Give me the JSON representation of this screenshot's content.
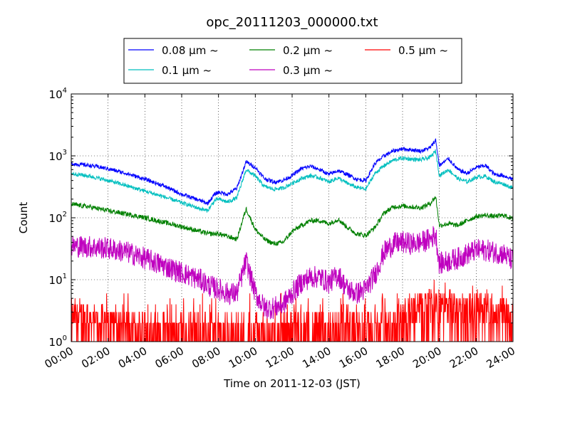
{
  "chart_data": {
    "type": "line",
    "title": "opc_20111203_000000.txt",
    "xlabel": "Time on 2011-12-03 (JST)",
    "ylabel": "Count",
    "x_range_hours": [
      0,
      24
    ],
    "ylim": [
      1,
      10000
    ],
    "yscale": "log",
    "grid": true,
    "legend_location": "top-center, above plot",
    "x_ticks": [
      "00:00",
      "02:00",
      "04:00",
      "06:00",
      "08:00",
      "10:00",
      "12:00",
      "14:00",
      "16:00",
      "18:00",
      "20:00",
      "22:00",
      "24:00"
    ],
    "y_ticks": [
      {
        "value": 1,
        "base": "10",
        "exp": "0"
      },
      {
        "value": 10,
        "base": "10",
        "exp": "1"
      },
      {
        "value": 100,
        "base": "10",
        "exp": "2"
      },
      {
        "value": 1000,
        "base": "10",
        "exp": "3"
      },
      {
        "value": 10000,
        "base": "10",
        "exp": "4"
      }
    ],
    "series": [
      {
        "name": "0.08 μm ~",
        "color": "#0000ff",
        "noise": 0.05,
        "values": [
          [
            0,
            750
          ],
          [
            1,
            700
          ],
          [
            2,
            620
          ],
          [
            3,
            520
          ],
          [
            4,
            420
          ],
          [
            5,
            330
          ],
          [
            6,
            240
          ],
          [
            7,
            190
          ],
          [
            7.4,
            170
          ],
          [
            7.8,
            240
          ],
          [
            8,
            260
          ],
          [
            8.5,
            240
          ],
          [
            9,
            300
          ],
          [
            9.5,
            800
          ],
          [
            10,
            650
          ],
          [
            10.5,
            430
          ],
          [
            11,
            380
          ],
          [
            11.5,
            400
          ],
          [
            12,
            480
          ],
          [
            12.5,
            620
          ],
          [
            13,
            680
          ],
          [
            13.5,
            600
          ],
          [
            14,
            500
          ],
          [
            14.5,
            580
          ],
          [
            15,
            500
          ],
          [
            15.5,
            420
          ],
          [
            16,
            400
          ],
          [
            16.5,
            750
          ],
          [
            17,
            1000
          ],
          [
            17.5,
            1200
          ],
          [
            18,
            1300
          ],
          [
            18.5,
            1250
          ],
          [
            19,
            1200
          ],
          [
            19.5,
            1350
          ],
          [
            19.8,
            1800
          ],
          [
            20,
            700
          ],
          [
            20.5,
            900
          ],
          [
            21,
            600
          ],
          [
            21.5,
            520
          ],
          [
            22,
            650
          ],
          [
            22.5,
            700
          ],
          [
            23,
            500
          ],
          [
            23.5,
            480
          ],
          [
            24,
            420
          ]
        ]
      },
      {
        "name": "0.1 μm ~",
        "color": "#00bfbf",
        "noise": 0.05,
        "values": [
          [
            0,
            520
          ],
          [
            1,
            470
          ],
          [
            2,
            400
          ],
          [
            3,
            330
          ],
          [
            4,
            270
          ],
          [
            5,
            220
          ],
          [
            6,
            175
          ],
          [
            7,
            140
          ],
          [
            7.4,
            130
          ],
          [
            7.8,
            190
          ],
          [
            8,
            200
          ],
          [
            8.5,
            180
          ],
          [
            9,
            210
          ],
          [
            9.5,
            600
          ],
          [
            10,
            470
          ],
          [
            10.5,
            320
          ],
          [
            11,
            290
          ],
          [
            11.5,
            300
          ],
          [
            12,
            360
          ],
          [
            12.5,
            430
          ],
          [
            13,
            480
          ],
          [
            13.5,
            440
          ],
          [
            14,
            380
          ],
          [
            14.5,
            440
          ],
          [
            15,
            360
          ],
          [
            15.5,
            310
          ],
          [
            16,
            290
          ],
          [
            16.5,
            520
          ],
          [
            17,
            700
          ],
          [
            17.5,
            850
          ],
          [
            18,
            920
          ],
          [
            18.5,
            880
          ],
          [
            19,
            860
          ],
          [
            19.5,
            950
          ],
          [
            19.8,
            1200
          ],
          [
            20,
            480
          ],
          [
            20.5,
            600
          ],
          [
            21,
            430
          ],
          [
            21.5,
            380
          ],
          [
            22,
            450
          ],
          [
            22.5,
            470
          ],
          [
            23,
            380
          ],
          [
            23.5,
            350
          ],
          [
            24,
            300
          ]
        ]
      },
      {
        "name": "0.2 μm ~",
        "color": "#008000",
        "noise": 0.06,
        "values": [
          [
            0,
            165
          ],
          [
            1,
            150
          ],
          [
            2,
            130
          ],
          [
            3,
            115
          ],
          [
            4,
            100
          ],
          [
            5,
            85
          ],
          [
            6,
            72
          ],
          [
            7,
            60
          ],
          [
            7.5,
            55
          ],
          [
            8,
            55
          ],
          [
            8.5,
            50
          ],
          [
            9,
            45
          ],
          [
            9.5,
            140
          ],
          [
            10,
            65
          ],
          [
            10.5,
            45
          ],
          [
            11,
            38
          ],
          [
            11.5,
            40
          ],
          [
            12,
            60
          ],
          [
            12.5,
            75
          ],
          [
            13,
            90
          ],
          [
            13.5,
            90
          ],
          [
            14,
            80
          ],
          [
            14.5,
            95
          ],
          [
            15,
            70
          ],
          [
            15.5,
            55
          ],
          [
            16,
            52
          ],
          [
            16.5,
            70
          ],
          [
            17,
            120
          ],
          [
            17.5,
            150
          ],
          [
            18,
            155
          ],
          [
            18.5,
            150
          ],
          [
            19,
            145
          ],
          [
            19.5,
            170
          ],
          [
            19.8,
            220
          ],
          [
            20,
            75
          ],
          [
            20.5,
            80
          ],
          [
            21,
            75
          ],
          [
            21.5,
            90
          ],
          [
            22,
            105
          ],
          [
            22.5,
            110
          ],
          [
            23,
            105
          ],
          [
            23.5,
            110
          ],
          [
            24,
            95
          ]
        ]
      },
      {
        "name": "0.3 μm ~",
        "color": "#bf00bf",
        "noise": 0.14,
        "values": [
          [
            0,
            35
          ],
          [
            1,
            34
          ],
          [
            2,
            32
          ],
          [
            3,
            28
          ],
          [
            4,
            22
          ],
          [
            5,
            17
          ],
          [
            6,
            13
          ],
          [
            7,
            10
          ],
          [
            7.5,
            8
          ],
          [
            8,
            7
          ],
          [
            8.5,
            6
          ],
          [
            9,
            6
          ],
          [
            9.5,
            20
          ],
          [
            10,
            6
          ],
          [
            10.5,
            3.5
          ],
          [
            11,
            3.5
          ],
          [
            11.5,
            4
          ],
          [
            12,
            6
          ],
          [
            12.5,
            9
          ],
          [
            13,
            11
          ],
          [
            13.5,
            11
          ],
          [
            14,
            9
          ],
          [
            14.5,
            12
          ],
          [
            15,
            7
          ],
          [
            15.5,
            6
          ],
          [
            16,
            7
          ],
          [
            16.5,
            12
          ],
          [
            17,
            28
          ],
          [
            17.5,
            38
          ],
          [
            18,
            40
          ],
          [
            18.5,
            38
          ],
          [
            19,
            40
          ],
          [
            19.5,
            45
          ],
          [
            19.8,
            55
          ],
          [
            20,
            18
          ],
          [
            20.5,
            20
          ],
          [
            21,
            22
          ],
          [
            21.5,
            26
          ],
          [
            22,
            30
          ],
          [
            22.5,
            30
          ],
          [
            23,
            28
          ],
          [
            23.5,
            26
          ],
          [
            24,
            20
          ]
        ]
      },
      {
        "name": "0.5 μm ~",
        "color": "#ff0000",
        "noise": 0.2,
        "values": [
          [
            0,
            2
          ],
          [
            1,
            1.8
          ],
          [
            2,
            1.6
          ],
          [
            3,
            1.4
          ],
          [
            4,
            1.3
          ],
          [
            5,
            1.2
          ],
          [
            6,
            1.1
          ],
          [
            7,
            1.1
          ],
          [
            8,
            1.05
          ],
          [
            9,
            1.05
          ],
          [
            10,
            1.1
          ],
          [
            11,
            1.1
          ],
          [
            12,
            1.1
          ],
          [
            13,
            1.2
          ],
          [
            14,
            1.2
          ],
          [
            15,
            1.2
          ],
          [
            16,
            1.2
          ],
          [
            17,
            1.3
          ],
          [
            17.5,
            1.6
          ],
          [
            18,
            2
          ],
          [
            18.5,
            2.3
          ],
          [
            19,
            2.6
          ],
          [
            19.5,
            3
          ],
          [
            20,
            2.6
          ],
          [
            21,
            2.6
          ],
          [
            22,
            2.5
          ],
          [
            23,
            2.2
          ],
          [
            24,
            2
          ]
        ]
      }
    ]
  }
}
